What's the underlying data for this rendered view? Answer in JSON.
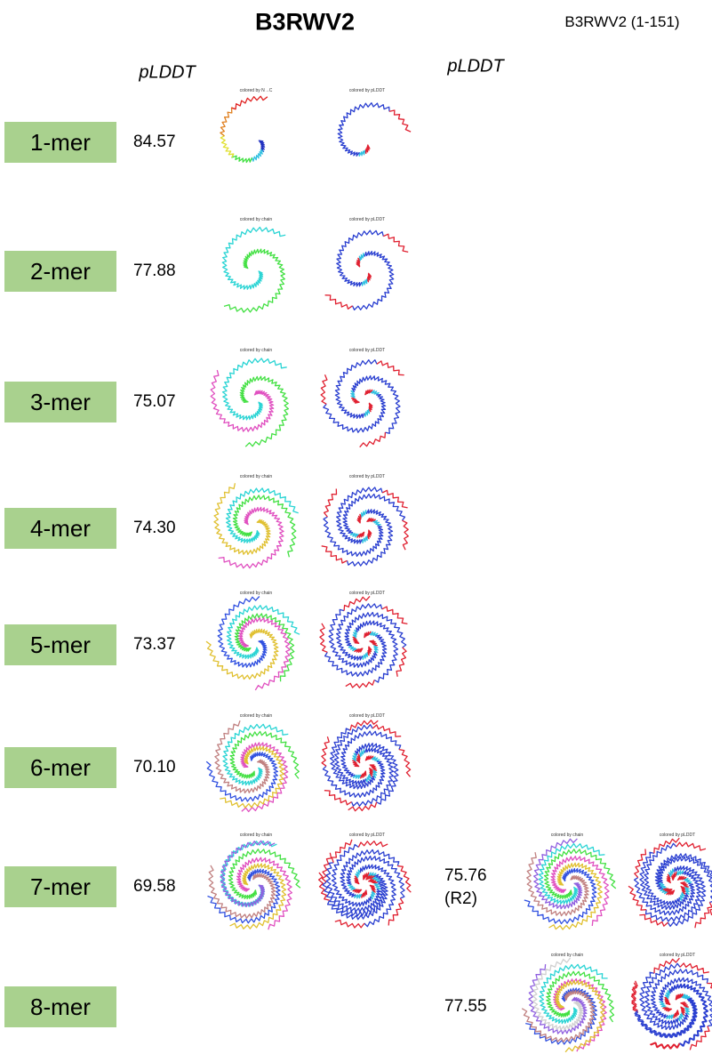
{
  "header": {
    "title": "B3RWV2",
    "subtitle": "B3RWV2 (1-151)"
  },
  "columns": {
    "plddt_left": "pLDDT",
    "plddt_right": "pLDDT"
  },
  "rows": [
    {
      "label": "1-mer",
      "plddt": "84.57",
      "captions": [
        "colored by N→C",
        "colored by pLDDT"
      ]
    },
    {
      "label": "2-mer",
      "plddt": "77.88",
      "captions": [
        "colored by chain",
        "colored by pLDDT"
      ]
    },
    {
      "label": "3-mer",
      "plddt": "75.07",
      "captions": [
        "colored by chain",
        "colored by pLDDT"
      ]
    },
    {
      "label": "4-mer",
      "plddt": "74.30",
      "captions": [
        "colored by chain",
        "colored by pLDDT"
      ]
    },
    {
      "label": "5-mer",
      "plddt": "73.37",
      "captions": [
        "colored by chain",
        "colored by pLDDT"
      ]
    },
    {
      "label": "6-mer",
      "plddt": "70.10",
      "captions": [
        "colored by chain",
        "colored by pLDDT"
      ]
    },
    {
      "label": "7-mer",
      "plddt": "69.58",
      "captions": [
        "colored by chain",
        "colored by pLDDT"
      ],
      "extra": {
        "plddt": "75.76",
        "note": "(R2)",
        "captions": [
          "colored by chain",
          "colored by pLDDT"
        ]
      }
    },
    {
      "label": "8-mer",
      "extra": {
        "plddt": "77.55",
        "captions": [
          "colored by chain",
          "colored by pLDDT"
        ]
      }
    }
  ]
}
